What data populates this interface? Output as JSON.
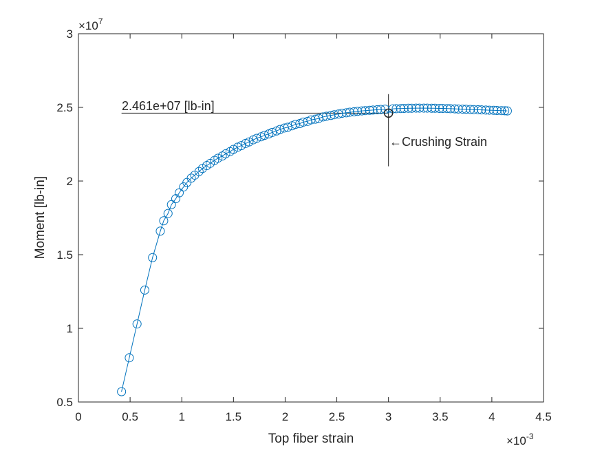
{
  "chart_data": {
    "type": "line",
    "title": "",
    "xlabel": "Top fiber strain",
    "ylabel": "Moment [lb-in]",
    "x_exponent_label": "×10",
    "x_exponent_power": "-3",
    "y_exponent_label": "×10",
    "y_exponent_power": "7",
    "xlim": [
      0,
      4.5
    ],
    "ylim": [
      0.5,
      3
    ],
    "x_ticks": [
      0,
      0.5,
      1,
      1.5,
      2,
      2.5,
      3,
      3.5,
      4,
      4.5
    ],
    "x_tick_labels": [
      "0",
      "0.5",
      "1",
      "1.5",
      "2",
      "2.5",
      "3",
      "3.5",
      "4",
      "4.5"
    ],
    "y_ticks": [
      0.5,
      1,
      1.5,
      2,
      2.5,
      3
    ],
    "y_tick_labels": [
      "0.5",
      "1",
      "1.5",
      "2",
      "2.5",
      "3"
    ],
    "grid": false,
    "series": [
      {
        "color": "#0072BD",
        "marker": "circle",
        "x": [
          0.417,
          0.492,
          0.567,
          0.642,
          0.717,
          0.792,
          0.825,
          0.867,
          0.9,
          0.942,
          0.975,
          1.017,
          1.05,
          1.092,
          1.125,
          1.167,
          1.2,
          1.242,
          1.275,
          1.317,
          1.35,
          1.392,
          1.425,
          1.467,
          1.5,
          1.542,
          1.575,
          1.617,
          1.65,
          1.692,
          1.725,
          1.767,
          1.8,
          1.842,
          1.875,
          1.917,
          1.95,
          1.992,
          2.025,
          2.067,
          2.1,
          2.142,
          2.175,
          2.217,
          2.25,
          2.292,
          2.325,
          2.367,
          2.4,
          2.442,
          2.475,
          2.517,
          2.55,
          2.592,
          2.625,
          2.667,
          2.7,
          2.742,
          2.775,
          2.817,
          2.85,
          2.892,
          2.925,
          2.967,
          3.0,
          3.042,
          3.075,
          3.117,
          3.15,
          3.192,
          3.225,
          3.267,
          3.3,
          3.342,
          3.375,
          3.417,
          3.45,
          3.492,
          3.525,
          3.567,
          3.6,
          3.642,
          3.675,
          3.717,
          3.75,
          3.792,
          3.825,
          3.867,
          3.9,
          3.942,
          3.975,
          4.017,
          4.05,
          4.092,
          4.125,
          4.15
        ],
        "y": [
          0.57,
          0.8,
          1.03,
          1.26,
          1.48,
          1.66,
          1.73,
          1.78,
          1.84,
          1.88,
          1.92,
          1.96,
          1.99,
          2.02,
          2.04,
          2.065,
          2.085,
          2.105,
          2.12,
          2.14,
          2.155,
          2.17,
          2.185,
          2.2,
          2.215,
          2.23,
          2.24,
          2.255,
          2.265,
          2.28,
          2.29,
          2.3,
          2.31,
          2.32,
          2.33,
          2.34,
          2.35,
          2.36,
          2.365,
          2.375,
          2.385,
          2.39,
          2.4,
          2.405,
          2.415,
          2.42,
          2.425,
          2.435,
          2.44,
          2.445,
          2.45,
          2.455,
          2.46,
          2.463,
          2.467,
          2.47,
          2.473,
          2.476,
          2.478,
          2.48,
          2.482,
          2.484,
          2.486,
          2.488,
          2.461,
          2.49,
          2.491,
          2.492,
          2.493,
          2.494,
          2.494,
          2.495,
          2.495,
          2.495,
          2.495,
          2.494,
          2.494,
          2.493,
          2.493,
          2.492,
          2.491,
          2.49,
          2.489,
          2.488,
          2.487,
          2.486,
          2.485,
          2.484,
          2.483,
          2.482,
          2.481,
          2.48,
          2.479,
          2.478,
          2.477,
          2.476
        ]
      }
    ],
    "highlight_point": {
      "x": 3.0,
      "y": 2.461,
      "color": "#262626"
    },
    "annotations": {
      "moment_label": "2.461e+07 [lb-in]",
      "crushing_label": "Crushing Strain",
      "arrow_glyph": "←"
    },
    "reference_lines": {
      "horizontal": {
        "y": 2.461,
        "x_start": 0.417,
        "x_end": 3.0
      },
      "vertical": {
        "x": 3.0,
        "y_start": 2.1,
        "y_end": 2.59
      }
    }
  }
}
